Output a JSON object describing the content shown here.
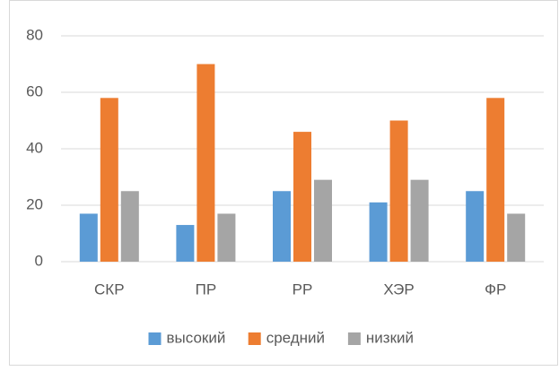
{
  "chart_data": {
    "type": "bar",
    "categories": [
      "СКР",
      "ПР",
      "РР",
      "ХЭР",
      "ФР"
    ],
    "series": [
      {
        "name": "высокий",
        "color": "#5b9bd5",
        "values": [
          17,
          13,
          25,
          21,
          25
        ]
      },
      {
        "name": "средний",
        "color": "#ed7d31",
        "values": [
          58,
          70,
          46,
          50,
          58
        ]
      },
      {
        "name": "низкий",
        "color": "#a5a5a5",
        "values": [
          25,
          17,
          29,
          29,
          17
        ]
      }
    ],
    "ylim": [
      0,
      80
    ],
    "yticks": [
      0,
      20,
      40,
      60,
      80
    ],
    "grid": true,
    "legend": "bottom"
  }
}
